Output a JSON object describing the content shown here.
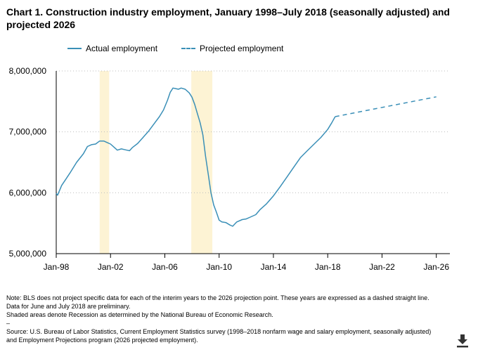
{
  "title": "Chart 1. Construction industry employment, January 1998–July 2018 (seasonally adjusted) and projected 2026",
  "legend": {
    "actual": "Actual employment",
    "projected": "Projected employment"
  },
  "colors": {
    "line": "#3a8fb7",
    "recession": "#fdf3d4",
    "grid": "#bdbdbd",
    "axis": "#000000"
  },
  "notes": {
    "line1": "Note: BLS does not project specific data for each of the interim years to the 2026 projection point. These years are expressed as a dashed straight line. Data for June and July 2018 are preliminary.",
    "line2": "Shaded areas denote Recession as determined by the National Bureau of Economic Research.",
    "separator": "–",
    "source": "Source: U.S. Bureau of Labor Statistics, Current Employment Statistics survey (1998–2018 nonfarm wage and salary employment, seasonally adjusted) and Employment Projections program (2026 projected employment)."
  },
  "download_icon": "download-icon",
  "chart_data": {
    "type": "line",
    "title": "Chart 1. Construction industry employment, January 1998–July 2018 (seasonally adjusted) and projected 2026",
    "xlabel": "",
    "ylabel": "",
    "xlim": [
      1998.0,
      2027.0
    ],
    "ylim": [
      5000000,
      8000000
    ],
    "y_ticks": [
      5000000,
      6000000,
      7000000,
      8000000
    ],
    "y_tick_labels": [
      "5,000,000",
      "6,000,000",
      "7,000,000",
      "8,000,000"
    ],
    "x_ticks": [
      1998,
      2002,
      2006,
      2010,
      2014,
      2018,
      2022,
      2026
    ],
    "x_tick_labels": [
      "Jan-98",
      "Jan-02",
      "Jan-06",
      "Jan-10",
      "Jan-14",
      "Jan-18",
      "Jan-22",
      "Jan-26"
    ],
    "grid": "horizontal dotted",
    "legend_position": "top",
    "recessions": [
      [
        2001.2,
        2001.9
      ],
      [
        2007.95,
        2009.5
      ]
    ],
    "series": [
      {
        "name": "Actual employment",
        "style": "solid",
        "points": [
          [
            1998.0,
            5990000
          ],
          [
            1998.1,
            5960000
          ],
          [
            1998.4,
            6120000
          ],
          [
            1998.7,
            6220000
          ],
          [
            1999.0,
            6320000
          ],
          [
            1999.5,
            6500000
          ],
          [
            2000.0,
            6640000
          ],
          [
            2000.3,
            6760000
          ],
          [
            2000.6,
            6790000
          ],
          [
            2000.9,
            6800000
          ],
          [
            2001.2,
            6850000
          ],
          [
            2001.5,
            6850000
          ],
          [
            2001.8,
            6820000
          ],
          [
            2002.0,
            6800000
          ],
          [
            2002.3,
            6740000
          ],
          [
            2002.5,
            6700000
          ],
          [
            2002.8,
            6720000
          ],
          [
            2003.0,
            6710000
          ],
          [
            2003.2,
            6700000
          ],
          [
            2003.4,
            6690000
          ],
          [
            2003.6,
            6740000
          ],
          [
            2004.0,
            6810000
          ],
          [
            2004.4,
            6910000
          ],
          [
            2004.8,
            7010000
          ],
          [
            2005.2,
            7130000
          ],
          [
            2005.6,
            7250000
          ],
          [
            2005.9,
            7360000
          ],
          [
            2006.2,
            7520000
          ],
          [
            2006.4,
            7650000
          ],
          [
            2006.6,
            7720000
          ],
          [
            2006.8,
            7710000
          ],
          [
            2007.0,
            7700000
          ],
          [
            2007.2,
            7720000
          ],
          [
            2007.5,
            7700000
          ],
          [
            2007.8,
            7640000
          ],
          [
            2008.0,
            7570000
          ],
          [
            2008.2,
            7450000
          ],
          [
            2008.4,
            7300000
          ],
          [
            2008.6,
            7150000
          ],
          [
            2008.8,
            6950000
          ],
          [
            2009.0,
            6600000
          ],
          [
            2009.2,
            6300000
          ],
          [
            2009.4,
            6000000
          ],
          [
            2009.6,
            5800000
          ],
          [
            2009.8,
            5680000
          ],
          [
            2010.0,
            5550000
          ],
          [
            2010.2,
            5520000
          ],
          [
            2010.5,
            5510000
          ],
          [
            2010.8,
            5470000
          ],
          [
            2011.0,
            5450000
          ],
          [
            2011.3,
            5520000
          ],
          [
            2011.7,
            5560000
          ],
          [
            2012.0,
            5570000
          ],
          [
            2012.3,
            5600000
          ],
          [
            2012.7,
            5640000
          ],
          [
            2013.0,
            5720000
          ],
          [
            2013.5,
            5820000
          ],
          [
            2014.0,
            5950000
          ],
          [
            2014.5,
            6100000
          ],
          [
            2015.0,
            6260000
          ],
          [
            2015.5,
            6420000
          ],
          [
            2016.0,
            6580000
          ],
          [
            2016.5,
            6690000
          ],
          [
            2017.0,
            6800000
          ],
          [
            2017.5,
            6910000
          ],
          [
            2018.0,
            7040000
          ],
          [
            2018.3,
            7150000
          ],
          [
            2018.55,
            7250000
          ]
        ]
      },
      {
        "name": "Projected employment",
        "style": "dashed",
        "points": [
          [
            2018.55,
            7250000
          ],
          [
            2026.0,
            7575000
          ]
        ]
      }
    ]
  }
}
